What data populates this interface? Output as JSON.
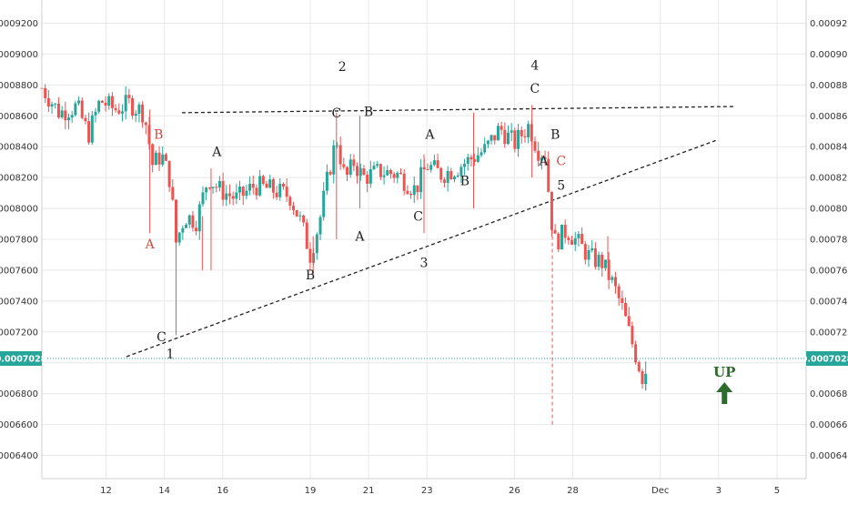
{
  "chart_data": {
    "type": "candlestick",
    "title": "",
    "xlabel": "",
    "ylabel": "",
    "ylim": [
      0.000625,
      0.000935
    ],
    "grid": true,
    "colors": {
      "up": "#26a69a",
      "down": "#ef5350",
      "background": "#ffffff",
      "grid": "#e8e8e8",
      "price_line": "#26a69a",
      "up_arrow": "#2e6b2e",
      "annotation_red": "#d14b3f",
      "annotation_dark": "#222222"
    },
    "y_ticks": [
      "0.0006400",
      "0.0006600",
      "0.0006800",
      "0.0007000",
      "0.0007200",
      "0.0007400",
      "0.0007600",
      "0.0007800",
      "0.0008000",
      "0.0008200",
      "0.0008400",
      "0.0008600",
      "0.0008800",
      "0.0009000",
      "0.0009200"
    ],
    "y_tick_values": [
      0.00064,
      0.00066,
      0.00068,
      0.0007,
      0.00072,
      0.00074,
      0.00076,
      0.00078,
      0.0008,
      0.00082,
      0.00084,
      0.00086,
      0.00088,
      0.0009,
      0.00092
    ],
    "x_ticks": [
      "12",
      "14",
      "16",
      "19",
      "21",
      "23",
      "26",
      "28",
      "Dec",
      "3",
      "5"
    ],
    "x_tick_days": [
      12,
      14,
      16,
      19,
      21,
      23,
      26,
      28,
      31,
      33,
      35
    ],
    "x_range_days": [
      9.8,
      36.0
    ],
    "last_price": "0.0007028",
    "last_price_value": 0.0007028,
    "candle_path": [
      [
        9.8,
        0.000878
      ],
      [
        10.4,
        0.000862
      ],
      [
        11.0,
        0.000866
      ],
      [
        11.4,
        0.000848
      ],
      [
        11.8,
        0.00087
      ],
      [
        12.3,
        0.000864
      ],
      [
        12.8,
        0.000868
      ],
      [
        13.3,
        0.000862
      ],
      [
        13.5,
        0.00084
      ],
      [
        13.6,
        0.000828
      ],
      [
        13.9,
        0.000835
      ],
      [
        14.2,
        0.000818
      ],
      [
        14.4,
        0.000778
      ],
      [
        14.7,
        0.000795
      ],
      [
        15.1,
        0.000792
      ],
      [
        15.5,
        0.00082
      ],
      [
        15.9,
        0.000812
      ],
      [
        16.5,
        0.000806
      ],
      [
        17.1,
        0.000815
      ],
      [
        17.7,
        0.000812
      ],
      [
        18.3,
        0.000808
      ],
      [
        18.7,
        0.00079
      ],
      [
        19.0,
        0.00077
      ],
      [
        19.3,
        0.00079
      ],
      [
        19.6,
        0.00082
      ],
      [
        19.9,
        0.000846
      ],
      [
        20.2,
        0.000818
      ],
      [
        20.5,
        0.00083
      ],
      [
        20.8,
        0.00082
      ],
      [
        21.4,
        0.000824
      ],
      [
        22.0,
        0.000822
      ],
      [
        22.6,
        0.000812
      ],
      [
        23.0,
        0.000828
      ],
      [
        23.5,
        0.000822
      ],
      [
        24.0,
        0.000826
      ],
      [
        24.5,
        0.000832
      ],
      [
        25.0,
        0.000838
      ],
      [
        25.5,
        0.000852
      ],
      [
        26.0,
        0.000842
      ],
      [
        26.5,
        0.000854
      ],
      [
        26.8,
        0.000838
      ],
      [
        27.1,
        0.000835
      ],
      [
        27.2,
        0.0008
      ],
      [
        27.4,
        0.000778
      ],
      [
        27.8,
        0.000786
      ],
      [
        28.3,
        0.000775
      ],
      [
        28.6,
        0.000768
      ],
      [
        29.0,
        0.000765
      ],
      [
        29.4,
        0.00075
      ],
      [
        29.7,
        0.000735
      ],
      [
        30.0,
        0.000715
      ],
      [
        30.4,
        0.00069
      ],
      [
        30.6,
        0.0007
      ]
    ],
    "candle_wicks": [
      {
        "day": 13.5,
        "low": 0.000784,
        "high": 0.000864
      },
      {
        "day": 14.4,
        "low": 0.000718,
        "high": 0.000805
      },
      {
        "day": 15.3,
        "low": 0.00076,
        "high": 0.000795
      },
      {
        "day": 15.6,
        "low": 0.00076,
        "high": 0.000826
      },
      {
        "day": 19.1,
        "low": 0.000755,
        "high": 0.000782
      },
      {
        "day": 19.9,
        "low": 0.00078,
        "high": 0.000862
      },
      {
        "day": 20.7,
        "low": 0.0008,
        "high": 0.00086
      },
      {
        "day": 22.9,
        "low": 0.000784,
        "high": 0.000835
      },
      {
        "day": 24.6,
        "low": 0.0008,
        "high": 0.000862
      },
      {
        "day": 26.6,
        "low": 0.00082,
        "high": 0.000867
      },
      {
        "day": 29.2,
        "low": 0.000764,
        "high": 0.000782
      },
      {
        "day": 30.5,
        "low": 0.000682,
        "high": 0.000701
      }
    ],
    "trendlines": [
      {
        "name": "upper",
        "from": [
          14.6,
          0.000862
        ],
        "to": [
          33.5,
          0.000866
        ]
      },
      {
        "name": "lower",
        "from": [
          12.7,
          0.000704
        ],
        "to": [
          32.9,
          0.000844
        ]
      }
    ],
    "projection_line": {
      "day": 27.3,
      "from": 0.00066,
      "to": 0.0008
    },
    "annotations": [
      {
        "text": "B",
        "day": 13.8,
        "price": 0.000845,
        "color": "red"
      },
      {
        "text": "A",
        "day": 13.5,
        "price": 0.000774,
        "color": "red"
      },
      {
        "text": "C",
        "day": 13.9,
        "price": 0.000714,
        "color": "dark"
      },
      {
        "text": "1",
        "day": 14.2,
        "price": 0.000703,
        "color": "dark",
        "wave": true
      },
      {
        "text": "A",
        "day": 15.8,
        "price": 0.000834,
        "color": "dark"
      },
      {
        "text": "B",
        "day": 19.0,
        "price": 0.000754,
        "color": "dark"
      },
      {
        "text": "C",
        "day": 19.9,
        "price": 0.000859,
        "color": "dark"
      },
      {
        "text": "2",
        "day": 20.1,
        "price": 0.000889,
        "color": "dark",
        "wave": true
      },
      {
        "text": "B",
        "day": 21.0,
        "price": 0.00086,
        "color": "dark"
      },
      {
        "text": "A",
        "day": 20.7,
        "price": 0.000779,
        "color": "dark"
      },
      {
        "text": "A",
        "day": 23.1,
        "price": 0.000845,
        "color": "dark"
      },
      {
        "text": "C",
        "day": 22.7,
        "price": 0.000792,
        "color": "dark"
      },
      {
        "text": "3",
        "day": 22.9,
        "price": 0.000762,
        "color": "dark",
        "wave": true
      },
      {
        "text": "B",
        "day": 24.3,
        "price": 0.000815,
        "color": "dark"
      },
      {
        "text": "4",
        "day": 26.7,
        "price": 0.00089,
        "color": "dark",
        "wave": true
      },
      {
        "text": "C",
        "day": 26.7,
        "price": 0.000875,
        "color": "dark"
      },
      {
        "text": "B",
        "day": 27.4,
        "price": 0.000845,
        "color": "dark"
      },
      {
        "text": "A",
        "day": 27.0,
        "price": 0.000828,
        "color": "dark"
      },
      {
        "text": "C",
        "day": 27.6,
        "price": 0.000828,
        "color": "red"
      },
      {
        "text": "5",
        "day": 27.6,
        "price": 0.000812,
        "color": "dark",
        "wave": true
      }
    ],
    "signal": {
      "text": "UP",
      "day": 33.2,
      "price": 0.000691
    }
  }
}
